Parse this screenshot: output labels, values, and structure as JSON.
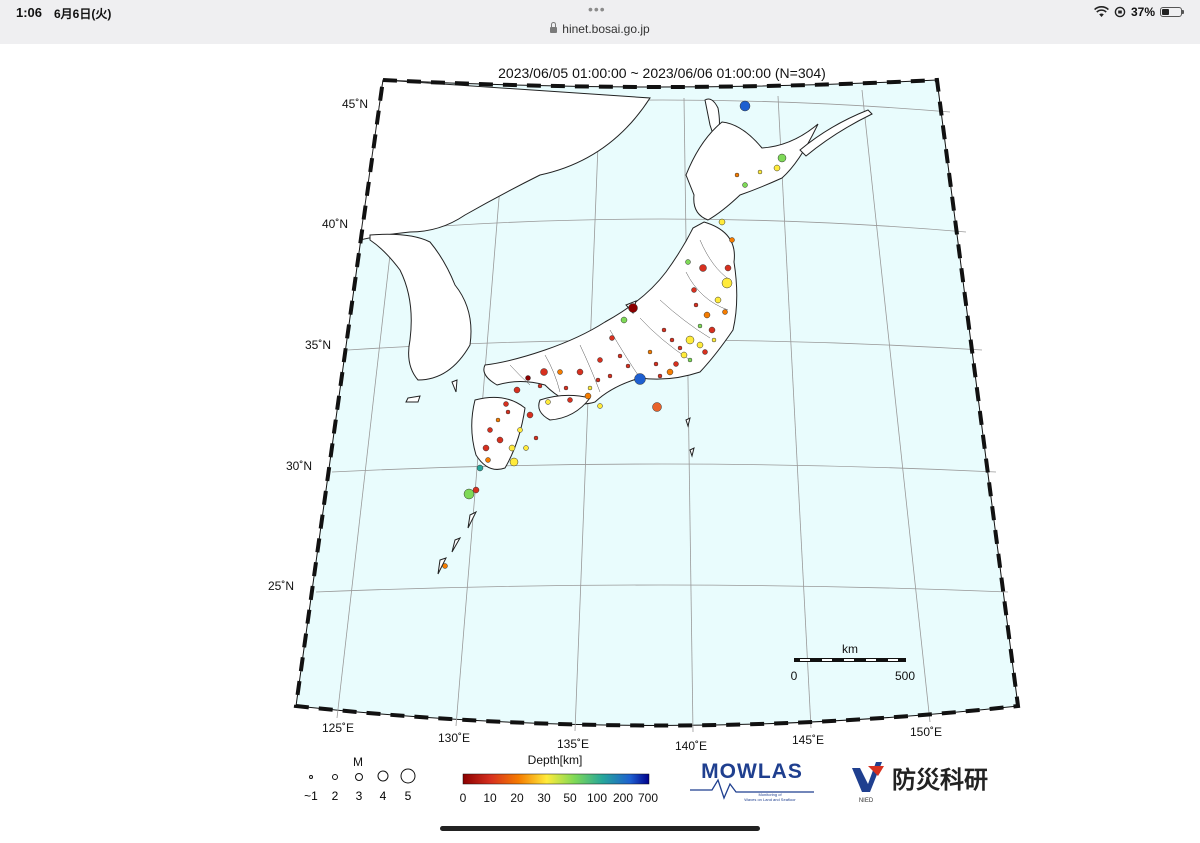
{
  "status_bar": {
    "time": "1:06",
    "date": "6月6日(火)",
    "url": "hinet.bosai.go.jp",
    "battery": "37%"
  },
  "map": {
    "title": "2023/06/05 01:00:00 ~ 2023/06/06 01:00:00 (N=304)",
    "lat_labels": [
      "45˚N",
      "40˚N",
      "35˚N",
      "30˚N",
      "25˚N"
    ],
    "lon_labels": [
      "125˚E",
      "130˚E",
      "135˚E",
      "140˚E",
      "145˚E",
      "150˚E"
    ],
    "scale": {
      "unit": "km",
      "start": "0",
      "end": "500"
    },
    "colors": {
      "sea": "#e9fcfd",
      "land": "#ffffff"
    }
  },
  "legend": {
    "mag_title": "M",
    "mag_labels": [
      "~1",
      "2",
      "3",
      "4",
      "5"
    ],
    "depth_title": "Depth[km]",
    "depth_labels": [
      "0",
      "10",
      "20",
      "30",
      "50",
      "100",
      "200",
      "700"
    ]
  },
  "logos": {
    "mowlas": "MOWLAS",
    "mowlas_sub1": "Monitoring of",
    "mowlas_sub2": "Waves on Land and Seafloor",
    "nied": "防災科研",
    "nied_sub": "NIED"
  }
}
